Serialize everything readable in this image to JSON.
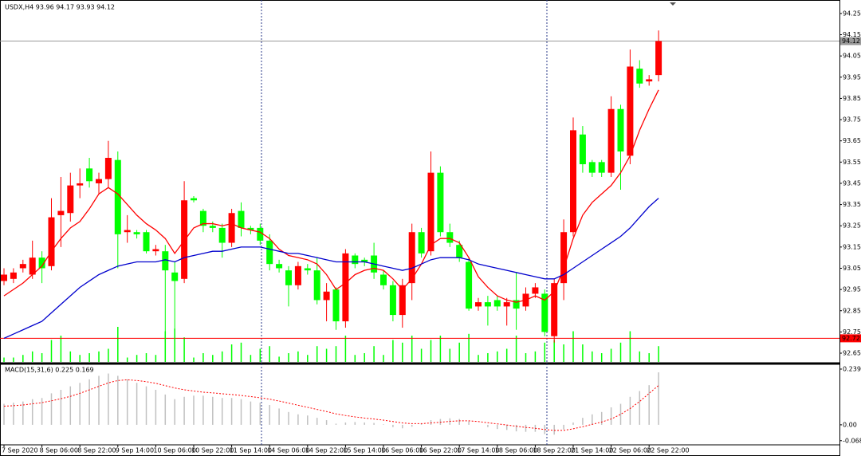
{
  "chart_data": [
    {
      "type": "candlestick",
      "title": "USDX,H4  93.96 94.17 93.93 94.12",
      "categories": [
        "7 Sep 2020",
        null,
        null,
        null,
        "8 Sep 06:00",
        null,
        null,
        null,
        "8 Sep 22:00",
        null,
        null,
        null,
        "9 Sep 14:00",
        null,
        null,
        null,
        "10 Sep 06:00",
        null,
        null,
        null,
        "10 Sep 22:00",
        null,
        null,
        null,
        "11 Sep 14:00",
        null,
        null,
        null,
        "14 Sep 06:00",
        null,
        null,
        null,
        "14 Sep 22:00",
        null,
        null,
        null,
        "15 Sep 14:00",
        null,
        null,
        null,
        "16 Sep 06:00",
        null,
        null,
        null,
        "16 Sep 22:00",
        null,
        null,
        null,
        "17 Sep 14:00",
        null,
        null,
        null,
        "18 Sep 06:00",
        null,
        null,
        null,
        "18 Sep 22:00",
        null,
        null,
        null,
        "21 Sep 14:00",
        null,
        null,
        null,
        "22 Sep 06:00",
        null,
        null,
        null,
        "22 Sep 22:00",
        null
      ],
      "open": [
        92.99,
        93.0,
        93.05,
        93.02,
        93.1,
        93.06,
        93.3,
        93.31,
        93.44,
        93.52,
        93.45,
        93.47,
        93.56,
        93.22,
        93.22,
        93.22,
        93.13,
        93.13,
        93.03,
        93.0,
        93.38,
        93.32,
        93.25,
        93.24,
        93.17,
        93.32,
        93.24,
        93.24,
        93.18,
        93.07,
        93.04,
        92.97,
        93.05,
        93.04,
        92.9,
        92.95,
        92.8,
        93.11,
        93.09,
        93.11,
        93.02,
        92.97,
        92.83,
        92.98,
        93.22,
        93.13,
        93.5,
        93.22,
        93.16,
        93.08,
        92.87,
        92.89,
        92.9,
        92.87,
        92.9,
        92.87,
        92.93,
        92.93,
        92.73,
        92.98,
        93.22,
        93.68,
        93.55,
        93.55,
        93.5,
        93.8,
        93.58,
        93.99,
        93.93,
        93.96
      ],
      "close": [
        93.02,
        93.03,
        93.07,
        93.1,
        93.05,
        93.29,
        93.32,
        93.44,
        93.45,
        93.46,
        93.47,
        93.57,
        93.21,
        93.23,
        93.21,
        93.13,
        93.14,
        93.04,
        92.99,
        93.37,
        93.37,
        93.25,
        93.24,
        93.17,
        93.31,
        93.24,
        93.23,
        93.18,
        93.07,
        93.05,
        92.97,
        93.06,
        93.04,
        92.9,
        92.94,
        92.8,
        93.12,
        93.07,
        93.08,
        93.03,
        92.97,
        92.83,
        92.97,
        93.22,
        93.12,
        93.5,
        93.22,
        93.17,
        93.1,
        92.86,
        92.89,
        92.87,
        92.87,
        92.89,
        92.86,
        92.93,
        92.96,
        92.75,
        92.98,
        93.22,
        93.7,
        93.54,
        93.5,
        93.5,
        93.8,
        93.6,
        94.0,
        93.92,
        93.94,
        94.12
      ],
      "high": [
        93.05,
        93.05,
        93.09,
        93.18,
        93.13,
        93.38,
        93.48,
        93.5,
        93.52,
        93.57,
        93.5,
        93.65,
        93.6,
        93.3,
        93.23,
        93.23,
        93.16,
        93.16,
        93.08,
        93.46,
        93.39,
        93.33,
        93.27,
        93.26,
        93.33,
        93.36,
        93.25,
        93.26,
        93.21,
        93.09,
        93.06,
        93.08,
        93.07,
        93.1,
        92.98,
        92.96,
        93.14,
        93.12,
        93.1,
        93.17,
        93.04,
        92.99,
        93.0,
        93.26,
        93.24,
        93.6,
        93.53,
        93.26,
        93.18,
        93.1,
        92.91,
        92.92,
        92.92,
        92.91,
        93.03,
        92.96,
        92.98,
        92.95,
        93.0,
        93.28,
        93.76,
        93.72,
        93.56,
        93.56,
        93.86,
        93.82,
        94.08,
        94.03,
        93.96,
        94.17
      ],
      "low": [
        92.97,
        92.98,
        93.03,
        93.0,
        92.98,
        93.04,
        93.15,
        93.27,
        93.38,
        93.43,
        93.4,
        93.43,
        93.05,
        93.17,
        93.19,
        93.12,
        93.11,
        92.7,
        92.65,
        92.98,
        93.36,
        93.22,
        93.22,
        93.1,
        93.15,
        93.2,
        93.21,
        93.16,
        93.04,
        93.03,
        92.87,
        92.95,
        93.02,
        92.88,
        92.8,
        92.76,
        92.77,
        93.05,
        93.06,
        93.0,
        92.95,
        92.8,
        92.77,
        92.9,
        93.1,
        93.11,
        93.2,
        93.15,
        93.08,
        92.85,
        92.85,
        92.78,
        92.85,
        92.78,
        92.76,
        92.85,
        92.91,
        92.73,
        92.7,
        92.9,
        93.2,
        93.5,
        93.48,
        93.48,
        93.48,
        93.42,
        93.54,
        93.9,
        93.91,
        93.93
      ],
      "lines": [
        {
          "color": "#ff0000",
          "values": [
            92.92,
            92.95,
            92.98,
            93.02,
            93.06,
            93.13,
            93.19,
            93.24,
            93.27,
            93.33,
            93.4,
            93.43,
            93.4,
            93.35,
            93.3,
            93.26,
            93.23,
            93.19,
            93.12,
            93.18,
            93.24,
            93.26,
            93.26,
            93.25,
            93.26,
            93.24,
            93.23,
            93.22,
            93.19,
            93.14,
            93.11,
            93.1,
            93.09,
            93.07,
            93.02,
            92.95,
            92.98,
            93.02,
            93.04,
            93.05,
            93.04,
            93.0,
            92.95,
            93.0,
            93.07,
            93.16,
            93.19,
            93.19,
            93.17,
            93.1,
            93.01,
            92.96,
            92.92,
            92.9,
            92.89,
            92.9,
            92.92,
            92.9,
            92.94,
            93.05,
            93.19,
            93.3,
            93.36,
            93.4,
            93.44,
            93.5,
            93.58,
            93.7,
            93.8,
            93.89
          ]
        },
        {
          "color": "#0000cd",
          "values": [
            92.72,
            92.74,
            92.76,
            92.78,
            92.8,
            92.84,
            92.88,
            92.92,
            92.96,
            92.99,
            93.02,
            93.04,
            93.06,
            93.07,
            93.08,
            93.08,
            93.08,
            93.09,
            93.08,
            93.1,
            93.11,
            93.12,
            93.13,
            93.13,
            93.14,
            93.15,
            93.15,
            93.15,
            93.14,
            93.13,
            93.12,
            93.12,
            93.11,
            93.1,
            93.09,
            93.08,
            93.08,
            93.08,
            93.08,
            93.07,
            93.06,
            93.05,
            93.04,
            93.05,
            93.07,
            93.09,
            93.1,
            93.1,
            93.1,
            93.09,
            93.07,
            93.06,
            93.05,
            93.04,
            93.03,
            93.02,
            93.01,
            93.0,
            93.0,
            93.02,
            93.05,
            93.08,
            93.11,
            93.14,
            93.17,
            93.2,
            93.24,
            93.29,
            93.34,
            93.38
          ]
        }
      ],
      "volumes": [
        5,
        5,
        8,
        12,
        10,
        25,
        30,
        12,
        8,
        10,
        12,
        15,
        40,
        5,
        8,
        10,
        8,
        35,
        38,
        28,
        5,
        10,
        8,
        12,
        20,
        22,
        8,
        15,
        18,
        6,
        10,
        12,
        8,
        18,
        15,
        18,
        30,
        8,
        10,
        18,
        8,
        25,
        22,
        30,
        15,
        25,
        30,
        15,
        22,
        32,
        8,
        10,
        12,
        15,
        30,
        10,
        12,
        22,
        25,
        20,
        35,
        20,
        12,
        10,
        15,
        22,
        35,
        12,
        10,
        18
      ],
      "volume_color": "#00ff00",
      "up_color": "#ff0000",
      "down_color": "#00ff00",
      "hlines": [
        {
          "value": 94.12,
          "color": "#9a9a9a"
        },
        {
          "value": 92.72,
          "color": "#ff0000"
        }
      ],
      "ylim": [
        92.605,
        94.306
      ],
      "yticks": [
        94.25,
        94.15,
        94.05,
        93.95,
        93.85,
        93.75,
        93.65,
        93.55,
        93.45,
        93.35,
        93.25,
        93.15,
        93.05,
        92.95,
        92.85,
        92.75,
        92.65
      ]
    },
    {
      "type": "macd",
      "title": "MACD(15,31,6) 0.225 0.169",
      "histogram": [
        0.09,
        0.095,
        0.1,
        0.11,
        0.115,
        0.135,
        0.15,
        0.165,
        0.18,
        0.195,
        0.21,
        0.22,
        0.21,
        0.195,
        0.18,
        0.165,
        0.15,
        0.13,
        0.11,
        0.12,
        0.125,
        0.125,
        0.12,
        0.115,
        0.115,
        0.11,
        0.1,
        0.095,
        0.085,
        0.07,
        0.055,
        0.045,
        0.04,
        0.03,
        0.02,
        0.005,
        0.01,
        0.012,
        0.01,
        0.008,
        0.002,
        -0.01,
        -0.015,
        -0.008,
        0.005,
        0.02,
        0.025,
        0.028,
        0.025,
        0.015,
        0.0,
        -0.01,
        -0.018,
        -0.022,
        -0.028,
        -0.03,
        -0.03,
        -0.04,
        -0.042,
        -0.02,
        0.01,
        0.03,
        0.045,
        0.055,
        0.075,
        0.09,
        0.12,
        0.145,
        0.17,
        0.225
      ],
      "histogram_color": "#c0c0c0",
      "signal": [
        0.08,
        0.082,
        0.085,
        0.09,
        0.095,
        0.103,
        0.112,
        0.122,
        0.135,
        0.15,
        0.165,
        0.18,
        0.19,
        0.193,
        0.19,
        0.185,
        0.178,
        0.168,
        0.158,
        0.15,
        0.145,
        0.14,
        0.137,
        0.133,
        0.13,
        0.126,
        0.121,
        0.116,
        0.11,
        0.102,
        0.093,
        0.084,
        0.075,
        0.066,
        0.057,
        0.047,
        0.04,
        0.034,
        0.029,
        0.025,
        0.02,
        0.014,
        0.008,
        0.005,
        0.005,
        0.008,
        0.011,
        0.015,
        0.017,
        0.017,
        0.014,
        0.009,
        0.004,
        -0.001,
        -0.006,
        -0.011,
        -0.015,
        -0.02,
        -0.024,
        -0.024,
        -0.017,
        -0.008,
        0.002,
        0.012,
        0.025,
        0.045,
        0.07,
        0.1,
        0.135,
        0.169
      ],
      "signal_color": "#ff0000",
      "ylim": [
        -0.079,
        0.256
      ],
      "yticks": [
        0.239,
        {
          "value": 0,
          "label": "0.00"
        },
        -0.068
      ]
    }
  ]
}
